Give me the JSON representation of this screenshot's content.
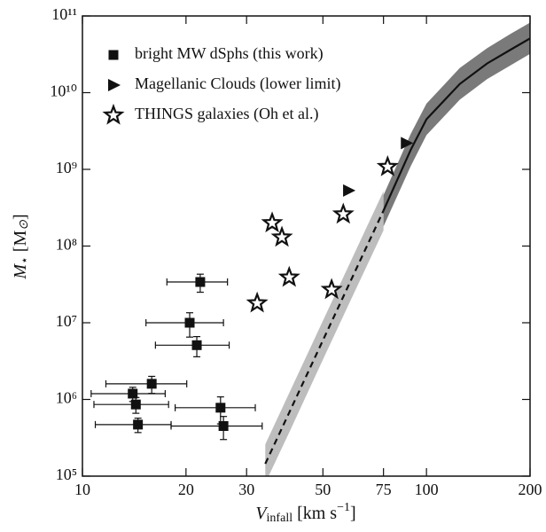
{
  "chart_data": {
    "type": "scatter",
    "xlabel": [
      "V",
      "infall",
      " [km s",
      "−1",
      "]"
    ],
    "ylabel": [
      "M",
      "⋆",
      " [M",
      "⊙",
      "]"
    ],
    "xscale": "log",
    "yscale": "log",
    "xlim": [
      10,
      200
    ],
    "ylim": [
      100000,
      100000000000
    ],
    "xticks": [
      10,
      20,
      30,
      50,
      75,
      100,
      200
    ],
    "yticks": [
      {
        "value": 100000,
        "label": "10⁵"
      },
      {
        "value": 1000000,
        "label": "10⁶"
      },
      {
        "value": 10000000,
        "label": "10⁷"
      },
      {
        "value": 100000000,
        "label": "10⁸"
      },
      {
        "value": 1000000000,
        "label": "10⁹"
      },
      {
        "value": 10000000000,
        "label": "10¹⁰"
      },
      {
        "value": 100000000000,
        "label": "10¹¹"
      }
    ],
    "legend": "upper left",
    "series": [
      {
        "name": "bright MW dSphs (this work)",
        "marker": "square",
        "color": "#111111",
        "x": [
          22,
          20.5,
          21.5,
          15.9,
          14.0,
          14.3,
          14.5,
          25.2,
          25.7
        ],
        "values": [
          34000000,
          10000000,
          5100000,
          1600000,
          1190000,
          860000,
          470000,
          780000,
          450000
        ],
        "xerr": [
          4.4,
          5.2,
          5.2,
          4.2,
          3.4,
          3.5,
          3.6,
          6.6,
          7.6
        ],
        "yerr": [
          9000000,
          3500000,
          1500000,
          400000,
          250000,
          200000,
          100000,
          300000,
          150000
        ]
      },
      {
        "name": "Magellanic Clouds (lower limit)",
        "marker": "triangle",
        "color": "#111111",
        "x": [
          59.3,
          87.3
        ],
        "values": [
          530000000,
          2200000000
        ]
      },
      {
        "name": "THINGS galaxies (Oh et al.)",
        "marker": "star",
        "color": "#111111",
        "x": [
          32.2,
          35.6,
          38.0,
          39.9,
          53.0,
          57.3,
          77.1
        ],
        "values": [
          18000000,
          200000000,
          130000000,
          39000000,
          27000000,
          260000000,
          1080000000
        ]
      }
    ],
    "relations": [
      {
        "style": "dashed",
        "color": "#111111",
        "band_color": "#bdbdbd",
        "x": [
          34,
          40,
          50,
          60,
          75
        ],
        "values": [
          145000,
          690000,
          5900000,
          34000000,
          290000000
        ],
        "lower": [
          81000,
          380000,
          3300000,
          19000000,
          160000000
        ],
        "upper": [
          260000,
          1240000,
          10600000,
          61000000,
          520000000
        ]
      },
      {
        "style": "solid",
        "color": "#111111",
        "band_color": "#7a7a7a",
        "x": [
          75,
          90,
          100,
          125,
          150,
          175,
          200
        ],
        "values": [
          290000000,
          1800000000,
          4500000000,
          13000000000,
          24000000000,
          36000000000,
          51000000000
        ],
        "lower": [
          180000000,
          1100000000,
          2800000000,
          8100000000,
          15000000000,
          22500000000,
          32000000000
        ],
        "upper": [
          460000000,
          2900000000,
          7200000000,
          21000000000,
          38000000000,
          58000000000,
          82000000000
        ]
      }
    ]
  }
}
